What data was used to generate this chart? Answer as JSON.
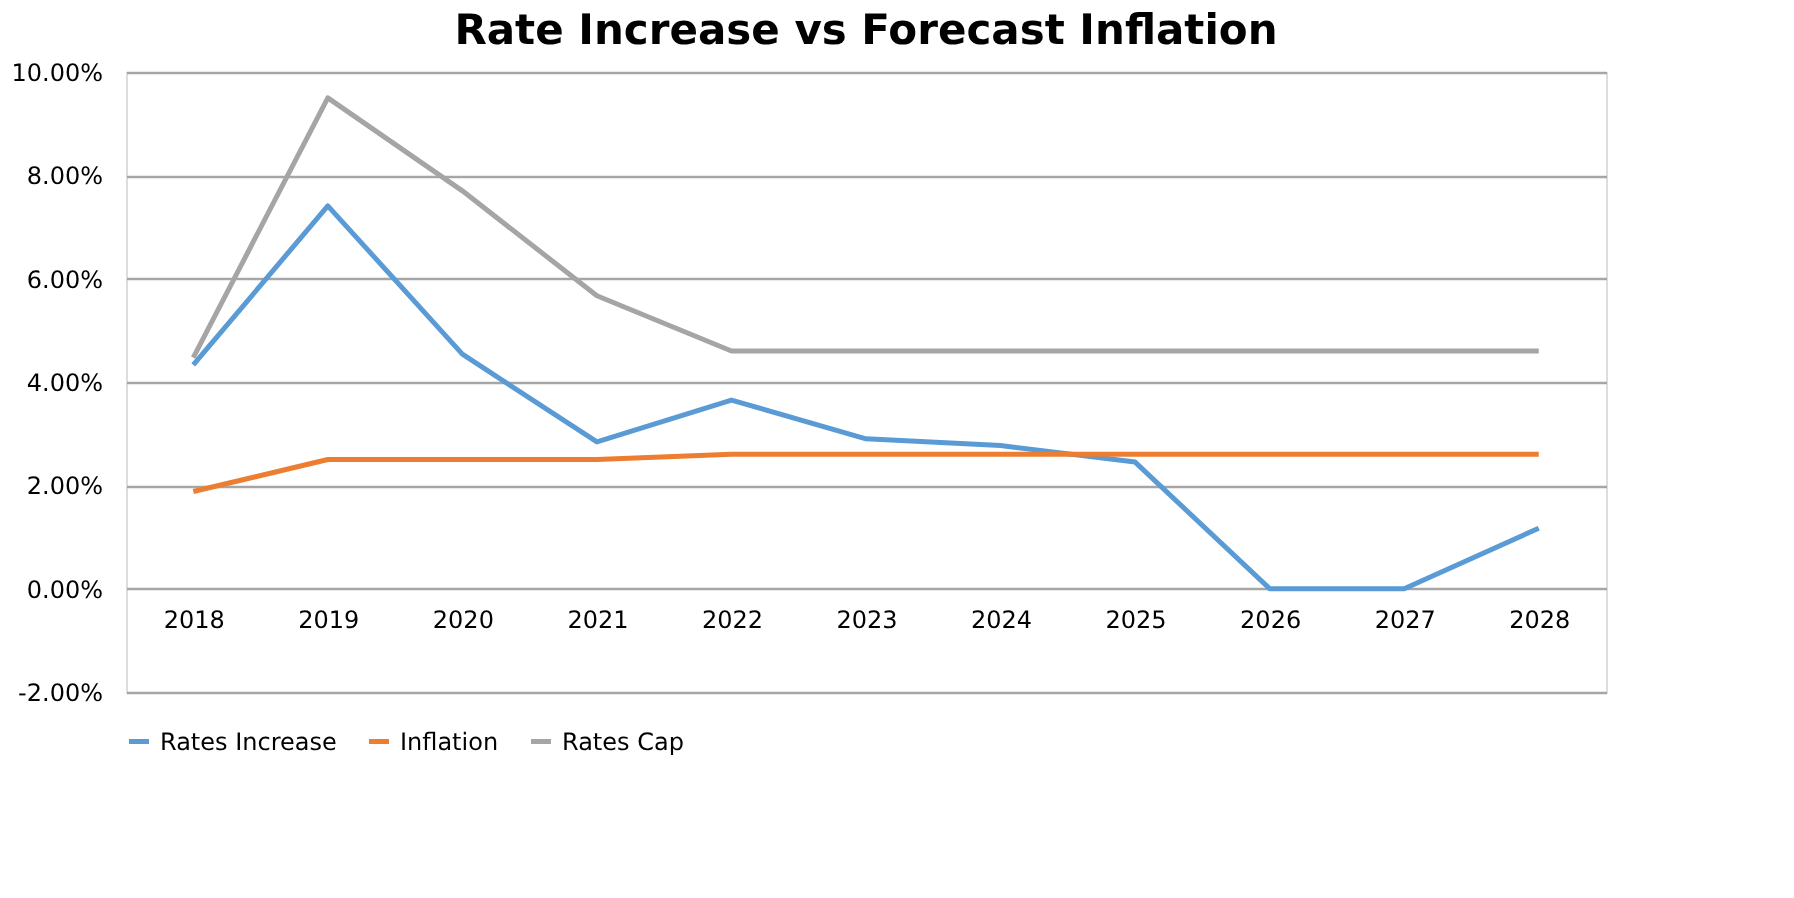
{
  "chart_data": {
    "type": "line",
    "title": "Rate Increase vs Forecast Inflation",
    "categories": [
      "2018",
      "2019",
      "2020",
      "2021",
      "2022",
      "2023",
      "2024",
      "2025",
      "2026",
      "2027",
      "2028"
    ],
    "series": [
      {
        "name": "Rates Increase",
        "color": "#5b9bd5",
        "values": [
          4.33,
          7.41,
          4.54,
          2.84,
          3.65,
          2.9,
          2.77,
          2.45,
          0,
          0,
          1.17
        ]
      },
      {
        "name": "Inflation",
        "color": "#ed7d31",
        "values": [
          1.88,
          2.5,
          2.5,
          2.5,
          2.6,
          2.6,
          2.6,
          2.6,
          2.6,
          2.6,
          2.6
        ]
      },
      {
        "name": "Rates Cap",
        "color": "#a5a5a5",
        "values": [
          4.47,
          9.5,
          7.7,
          5.67,
          4.6,
          4.6,
          4.6,
          4.6,
          4.6,
          4.6,
          4.6
        ]
      }
    ],
    "ylim": [
      -2,
      10
    ],
    "yticks": [
      {
        "value": -2,
        "label": "-2.00%"
      },
      {
        "value": 0,
        "label": "0.00%"
      },
      {
        "value": 2,
        "label": "2.00%"
      },
      {
        "value": 4,
        "label": "4.00%"
      },
      {
        "value": 6,
        "label": "6.00%"
      },
      {
        "value": 8,
        "label": "8.00%"
      },
      {
        "value": 10,
        "label": "10.00%"
      }
    ],
    "grid": "y",
    "legend": "bottom",
    "marker": "none",
    "line_style": "solid"
  }
}
